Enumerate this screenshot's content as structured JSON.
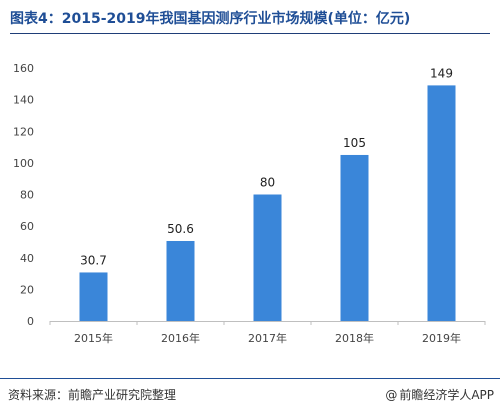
{
  "header": {
    "title": "图表4：2015-2019年我国基因测序行业市场规模(单位：亿元)"
  },
  "footer": {
    "source": "资料来源：前瞻产业研究院整理",
    "brand": "前瞻经济学人APP"
  },
  "chart_data": {
    "type": "bar",
    "categories": [
      "2015年",
      "2016年",
      "2017年",
      "2018年",
      "2019年"
    ],
    "values": [
      30.7,
      50.6,
      80,
      105,
      149
    ],
    "value_labels": [
      "30.7",
      "50.6",
      "80",
      "105",
      "149"
    ],
    "title": "图表4：2015-2019年我国基因测序行业市场规模(单位：亿元)",
    "xlabel": "",
    "ylabel": "",
    "ylim": [
      0,
      160
    ],
    "yticks": [
      0,
      20,
      40,
      60,
      80,
      100,
      120,
      140,
      160
    ],
    "grid": false,
    "legend": "none",
    "colors": {
      "bar": "#3a86d9",
      "axis": "#bfbfbf"
    }
  }
}
